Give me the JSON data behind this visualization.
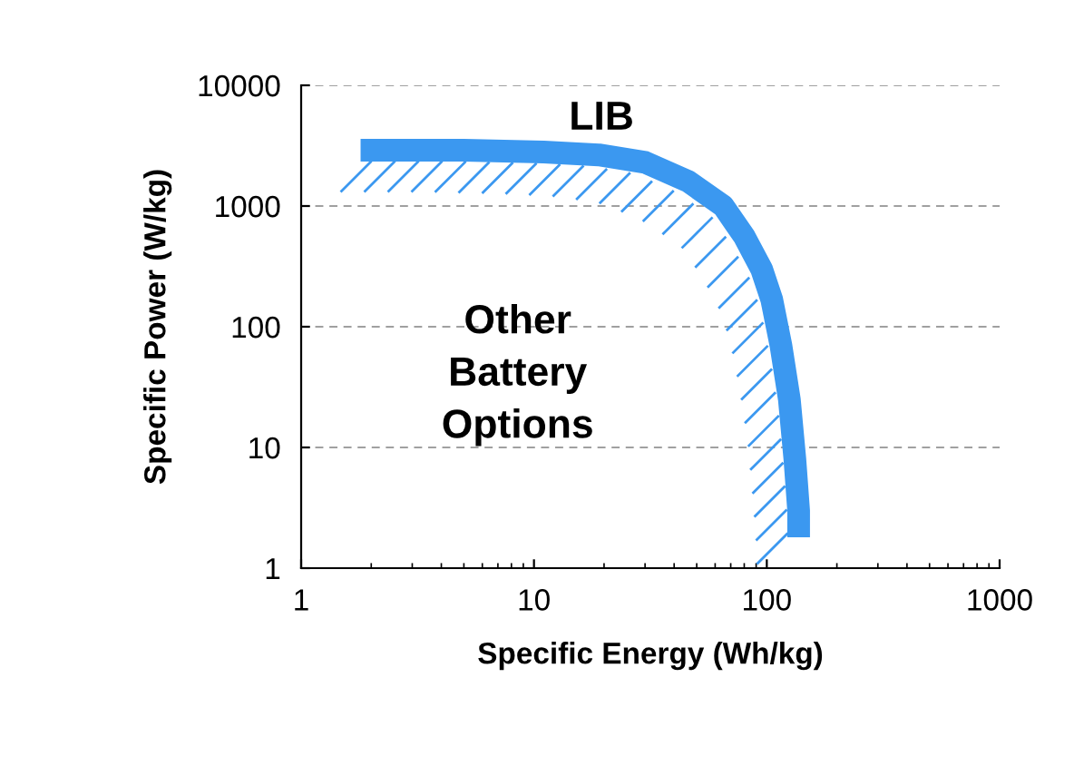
{
  "chart_data": {
    "type": "line",
    "xlabel": "Specific Energy (Wh/kg)",
    "ylabel": "Specific Power (W/kg)",
    "log": "xy",
    "xlim": [
      1,
      1000
    ],
    "ylim": [
      1,
      10000
    ],
    "xticks": [
      1,
      10,
      100,
      1000
    ],
    "yticks": [
      1,
      10,
      100,
      1000,
      10000
    ],
    "grid": "y",
    "line_style": "solid",
    "marker": "none",
    "series": [
      {
        "color": "#3b98f0",
        "x": [
          1.8,
          5,
          11,
          19,
          30,
          46,
          65,
          80,
          95,
          105,
          115,
          125,
          132,
          137,
          137
        ],
        "values": [
          2900,
          2900,
          2800,
          2650,
          2300,
          1600,
          1000,
          560,
          300,
          168,
          70,
          25,
          8,
          3,
          1.8
        ]
      }
    ],
    "annotations": [
      "LIB",
      "Other\nBattery\nOptions"
    ]
  }
}
